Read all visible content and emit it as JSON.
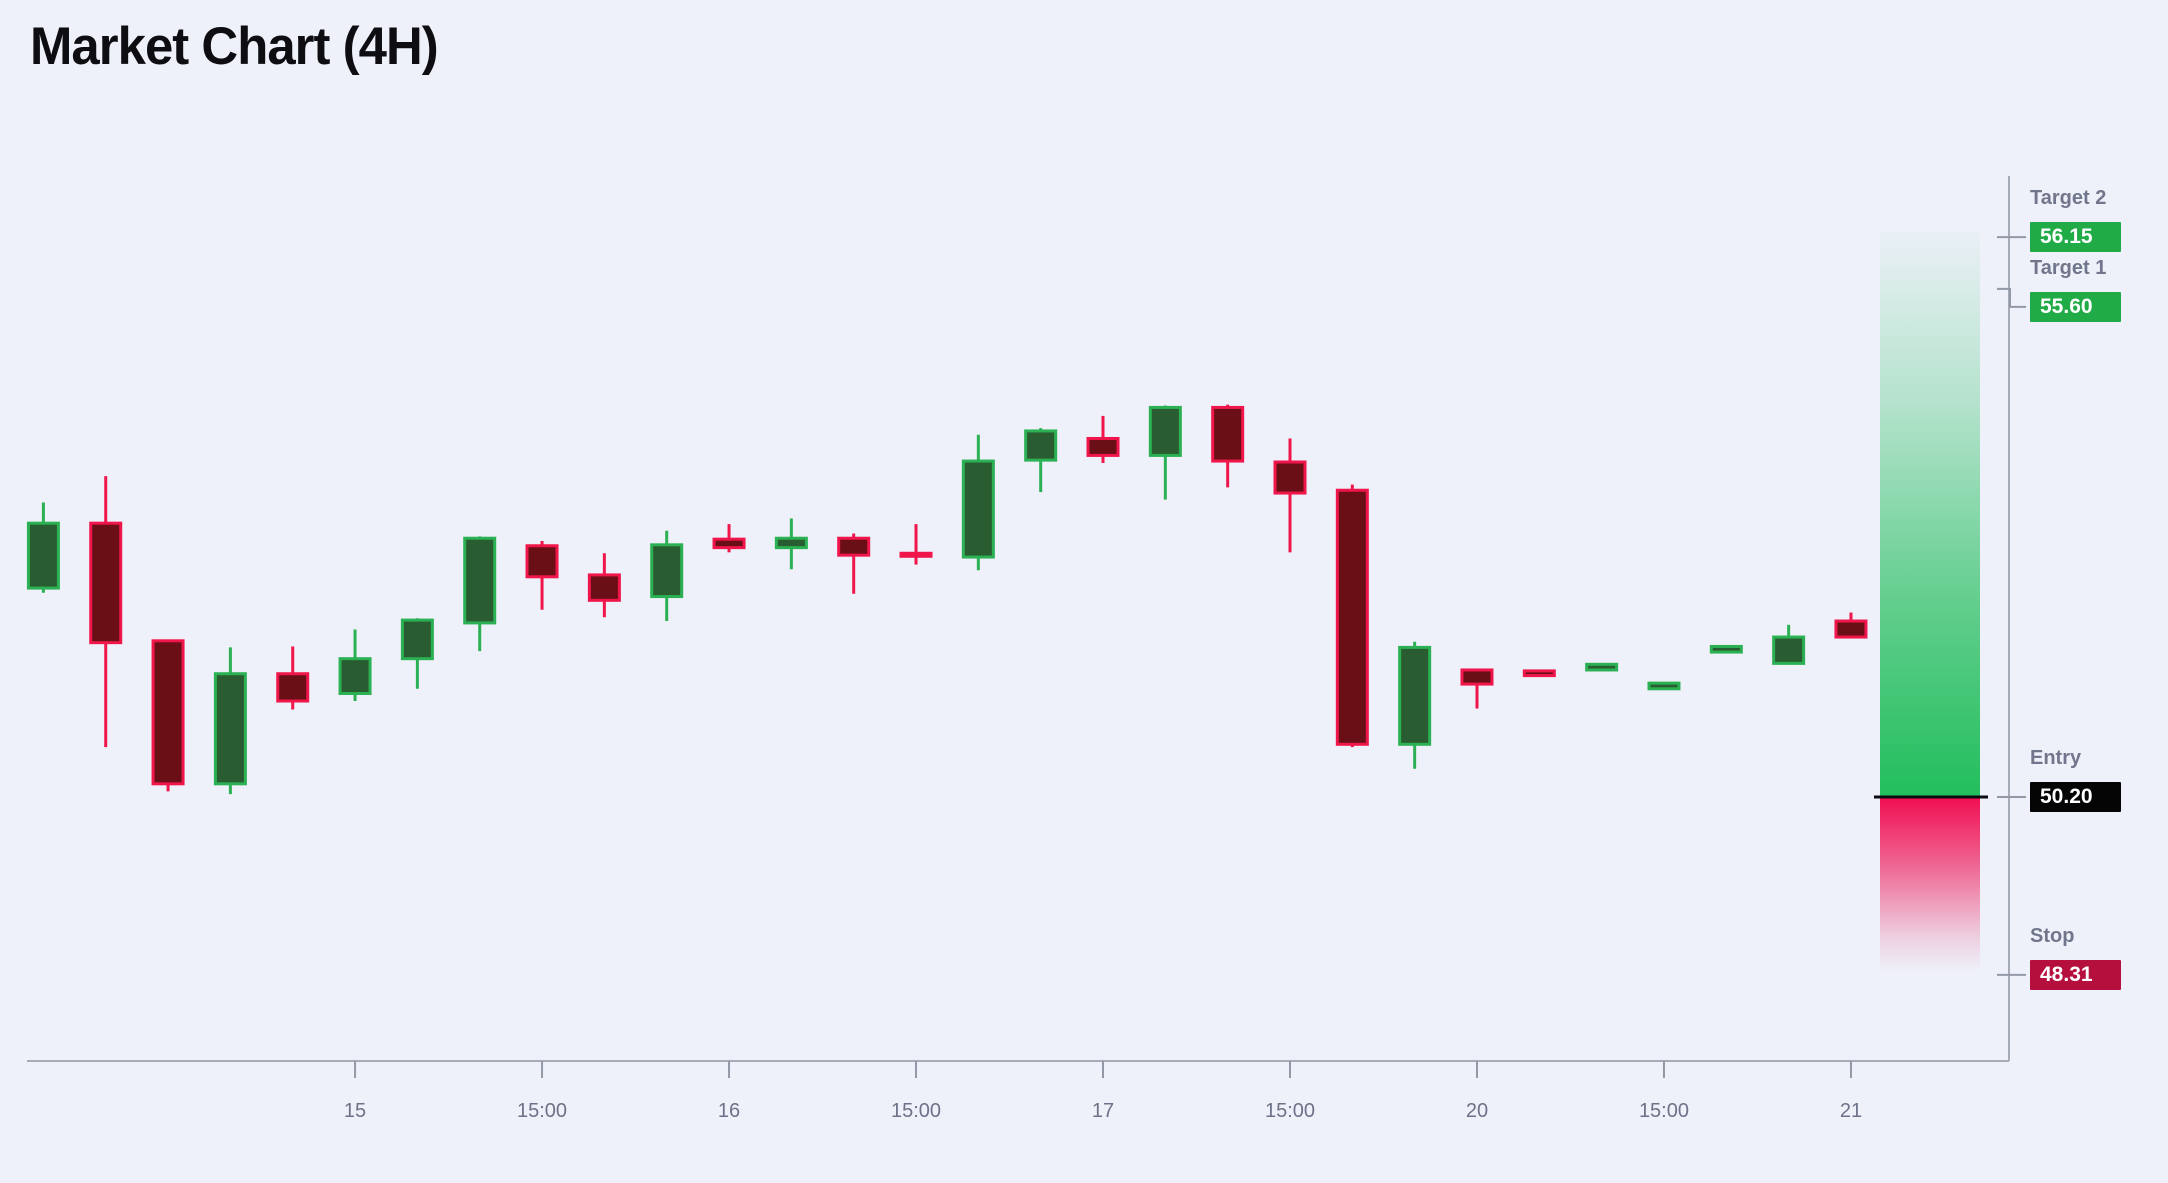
{
  "page": {
    "title": "Market Chart (4H)",
    "background_color": "#eef1f9"
  },
  "levels": {
    "target2": {
      "label": "Target 2",
      "value": "56.15",
      "price": 56.15,
      "badge_color": "#21ab47",
      "text_color": "#ffffff"
    },
    "target1": {
      "label": "Target 1",
      "value": "55.60",
      "price": 55.6,
      "badge_color": "#21ab47",
      "text_color": "#ffffff"
    },
    "entry": {
      "label": "Entry",
      "value": "50.20",
      "price": 50.2,
      "badge_color": "#050505",
      "text_color": "#ffffff"
    },
    "stop": {
      "label": "Stop",
      "value": "48.31",
      "price": 48.31,
      "badge_color": "#b50f3d",
      "text_color": "#ffffff"
    }
  },
  "chart_data": {
    "type": "candlestick",
    "title": "Market Chart (4H)",
    "timeframe": "4H",
    "ylim": [
      47.4,
      56.8
    ],
    "grid": false,
    "x_axis_labels": [
      {
        "candle_index": 5,
        "label": "15"
      },
      {
        "candle_index": 8,
        "label": "15:00"
      },
      {
        "candle_index": 11,
        "label": "16"
      },
      {
        "candle_index": 14,
        "label": "15:00"
      },
      {
        "candle_index": 17,
        "label": "17"
      },
      {
        "candle_index": 20,
        "label": "15:00"
      },
      {
        "candle_index": 23,
        "label": "20"
      },
      {
        "candle_index": 26,
        "label": "15:00"
      },
      {
        "candle_index": 29,
        "label": "21"
      }
    ],
    "candles_ohlc": [
      [
        52.42,
        53.33,
        52.37,
        53.11
      ],
      [
        53.11,
        53.61,
        50.73,
        51.84
      ],
      [
        51.86,
        51.86,
        50.26,
        50.34
      ],
      [
        50.34,
        51.79,
        50.23,
        51.51
      ],
      [
        51.51,
        51.8,
        51.13,
        51.22
      ],
      [
        51.3,
        51.98,
        51.22,
        51.67
      ],
      [
        51.67,
        52.1,
        51.35,
        52.08
      ],
      [
        52.05,
        52.97,
        51.75,
        52.95
      ],
      [
        52.87,
        52.92,
        52.19,
        52.54
      ],
      [
        52.56,
        52.79,
        52.11,
        52.29
      ],
      [
        52.33,
        53.03,
        52.07,
        52.88
      ],
      [
        52.94,
        53.1,
        52.8,
        52.85
      ],
      [
        52.85,
        53.16,
        52.62,
        52.95
      ],
      [
        52.95,
        53.0,
        52.36,
        52.77
      ],
      [
        52.79,
        53.1,
        52.67,
        52.76
      ],
      [
        52.75,
        54.05,
        52.61,
        53.77
      ],
      [
        53.78,
        54.12,
        53.44,
        54.09
      ],
      [
        54.01,
        54.25,
        53.75,
        53.83
      ],
      [
        53.83,
        54.36,
        53.36,
        54.34
      ],
      [
        54.34,
        54.37,
        53.49,
        53.77
      ],
      [
        53.76,
        54.01,
        52.8,
        53.43
      ],
      [
        53.46,
        53.52,
        50.73,
        50.76
      ],
      [
        50.76,
        51.85,
        50.5,
        51.79
      ],
      [
        51.55,
        51.55,
        51.14,
        51.4
      ],
      [
        51.54,
        51.55,
        51.48,
        51.49
      ],
      [
        51.55,
        51.62,
        51.54,
        51.61
      ],
      [
        51.35,
        51.42,
        51.34,
        51.41
      ],
      [
        51.74,
        51.81,
        51.73,
        51.8
      ],
      [
        51.62,
        52.03,
        51.61,
        51.9
      ],
      [
        52.07,
        52.16,
        51.89,
        51.9
      ]
    ],
    "levels": {
      "target2": 56.15,
      "target1": 55.6,
      "entry": 50.2,
      "stop": 48.31
    },
    "colors": {
      "bull_border": "#2bb153",
      "bull_fill": "#295c31",
      "bear_border": "#f0164b",
      "bear_fill": "#6a0f16",
      "axis": "#a6abb8",
      "tick": "#9298a6",
      "tick_label": "#6d7288",
      "profit_zone": "#22be5c",
      "loss_zone": "#f00e52",
      "entry_line": "#0c0c10"
    },
    "legend": null
  }
}
